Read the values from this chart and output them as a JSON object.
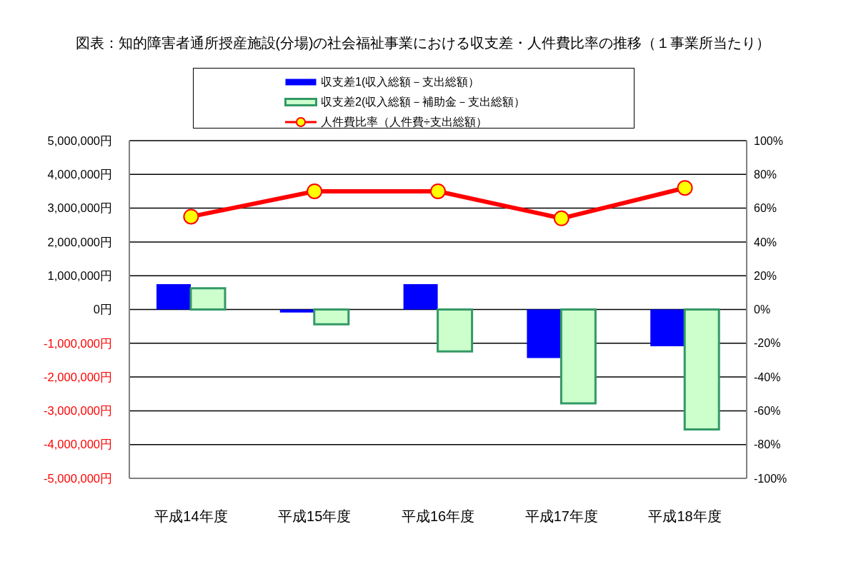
{
  "chart_data": {
    "type": "bar",
    "title": "図表：知的障害者通所授産施設(分場)の社会福祉事業における収支差・人件費比率の推移（１事業所当たり）",
    "categories": [
      "平成14年度",
      "平成15年度",
      "平成16年度",
      "平成17年度",
      "平成18年度"
    ],
    "series": [
      {
        "name": "収支差1(収入総額－支出総額）",
        "color": "#0000ff",
        "values": [
          750000,
          -90000,
          750000,
          -1440000,
          -1090000
        ]
      },
      {
        "name": "収支差2(収入総額－補助金－支出総額）",
        "color": "#ccffcc",
        "values": [
          630000,
          -440000,
          -1240000,
          -2780000,
          -3550000
        ]
      },
      {
        "name": "人件費比率（人件費÷支出総額）",
        "type": "line",
        "axis": "y2",
        "color": "#ff0000",
        "values": [
          55,
          70,
          70,
          54,
          72
        ]
      }
    ],
    "ylim": [
      -5000000,
      5000000
    ],
    "yticks": [
      {
        "value": 5000000,
        "label": "5,000,000円"
      },
      {
        "value": 4000000,
        "label": "4,000,000円"
      },
      {
        "value": 3000000,
        "label": "3,000,000円"
      },
      {
        "value": 2000000,
        "label": "2,000,000円"
      },
      {
        "value": 1000000,
        "label": "1,000,000円"
      },
      {
        "value": 0,
        "label": "0円"
      },
      {
        "value": -1000000,
        "label": "-1,000,000円"
      },
      {
        "value": -2000000,
        "label": "-2,000,000円"
      },
      {
        "value": -3000000,
        "label": "-3,000,000円"
      },
      {
        "value": -4000000,
        "label": "-4,000,000円"
      },
      {
        "value": -5000000,
        "label": "-5,000,000円"
      }
    ],
    "y2lim": [
      -100,
      100
    ],
    "y2ticks": [
      {
        "value": 100,
        "label": "100%"
      },
      {
        "value": 80,
        "label": "80%"
      },
      {
        "value": 60,
        "label": "60%"
      },
      {
        "value": 40,
        "label": "40%"
      },
      {
        "value": 20,
        "label": "20%"
      },
      {
        "value": 0,
        "label": "0%"
      },
      {
        "value": -20,
        "label": "-20%"
      },
      {
        "value": -40,
        "label": "-40%"
      },
      {
        "value": -60,
        "label": "-60%"
      },
      {
        "value": -80,
        "label": "-80%"
      },
      {
        "value": -100,
        "label": "-100%"
      }
    ],
    "grid": "y",
    "legend": "top",
    "marker": "circle",
    "line_style": "solid"
  }
}
